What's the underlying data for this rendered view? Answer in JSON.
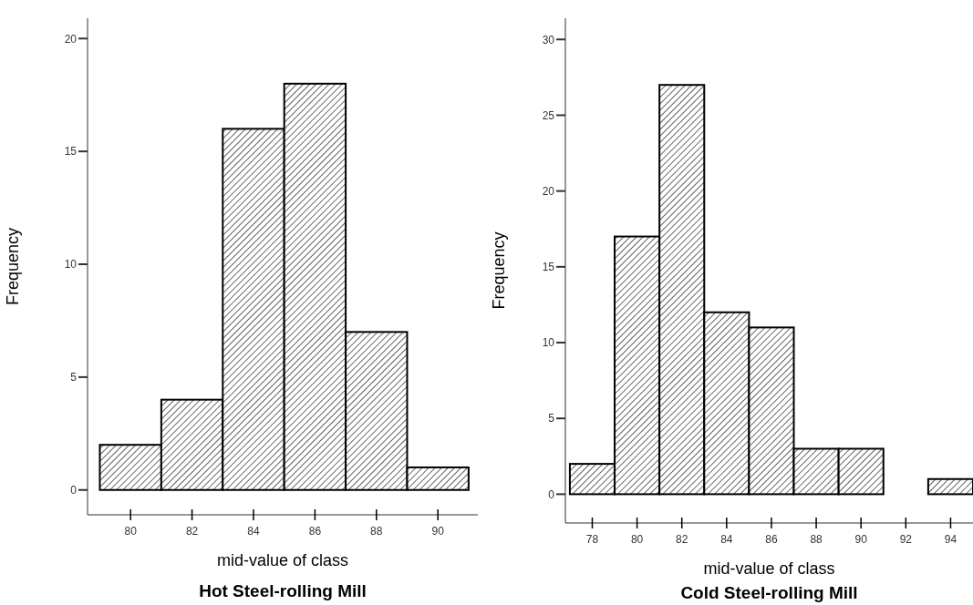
{
  "chart_data": [
    {
      "type": "histogram",
      "title": "Hot Steel-rolling Mill",
      "xlabel": "mid-value of class",
      "ylabel": "Frequency",
      "bins": [
        79,
        81,
        83,
        85,
        87,
        89,
        91
      ],
      "values": [
        2,
        4,
        16,
        18,
        7,
        1
      ],
      "color": "#000000",
      "xlim": [
        78.6,
        91.3
      ],
      "ylim": [
        -1.1,
        20.9
      ],
      "xticks": [
        80,
        82,
        84,
        86,
        88,
        90
      ],
      "yticks": [
        0,
        5,
        10,
        15,
        20
      ]
    },
    {
      "type": "histogram",
      "title": "Cold Steel-rolling Mill",
      "xlabel": "mid-value of class",
      "ylabel": "Frequency",
      "bins": [
        77,
        79,
        81,
        83,
        85,
        87,
        89,
        91,
        93,
        95
      ],
      "values": [
        2,
        17,
        27,
        12,
        11,
        3,
        3,
        0,
        1
      ],
      "color": "#000000",
      "xlim": [
        76.8,
        95
      ],
      "ylim": [
        -1.9,
        31.4
      ],
      "xticks": [
        78,
        80,
        82,
        84,
        86,
        88,
        90,
        92,
        94
      ],
      "yticks": [
        0,
        5,
        10,
        15,
        20,
        25,
        30
      ]
    }
  ]
}
